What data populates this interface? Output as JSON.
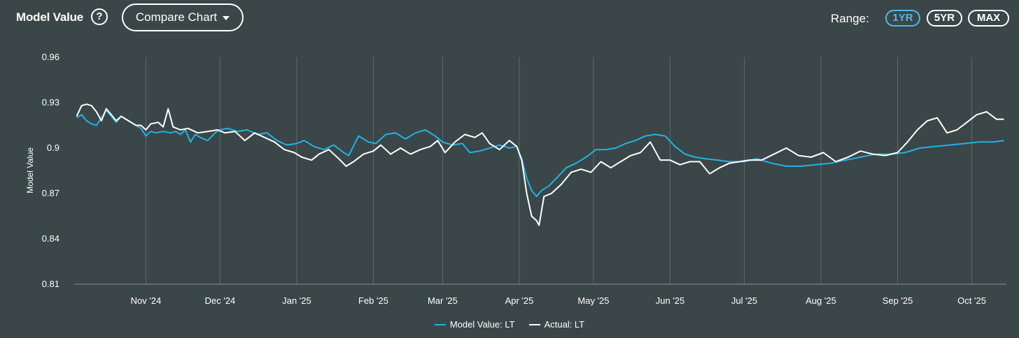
{
  "header": {
    "title": "Model Value",
    "help_icon": "question-icon",
    "compare_label": "Compare Chart",
    "range_label": "Range:",
    "range_options": [
      "1YR",
      "5YR",
      "MAX"
    ],
    "active_range": "1YR"
  },
  "colors": {
    "background": "#3b4648",
    "model": "#1fb4e6",
    "actual": "#ffffff",
    "active_pill": "#4db8ea",
    "grid": "#5d6a6c",
    "axis": "#8a9496"
  },
  "chart_data": {
    "type": "line",
    "xlabel": "",
    "ylabel": "Model Value",
    "ylim": [
      0.81,
      0.96
    ],
    "yticks": [
      "0.96",
      "0.93",
      "0.9",
      "0.87",
      "0.84",
      "0.81"
    ],
    "xlim": [
      "2024-10-03",
      "2025-10-15"
    ],
    "xticks": [
      {
        "label": "Nov '24",
        "date": "2024-11-01"
      },
      {
        "label": "Dec '24",
        "date": "2024-12-01"
      },
      {
        "label": "Jan '25",
        "date": "2025-01-01"
      },
      {
        "label": "Feb '25",
        "date": "2025-02-01"
      },
      {
        "label": "Mar '25",
        "date": "2025-03-01"
      },
      {
        "label": "Apr '25",
        "date": "2025-04-01"
      },
      {
        "label": "May '25",
        "date": "2025-05-01"
      },
      {
        "label": "Jun '25",
        "date": "2025-06-01"
      },
      {
        "label": "Jul '25",
        "date": "2025-07-01"
      },
      {
        "label": "Aug '25",
        "date": "2025-08-01"
      },
      {
        "label": "Sep '25",
        "date": "2025-09-01"
      },
      {
        "label": "Oct '25",
        "date": "2025-10-01"
      }
    ],
    "grid": "vertical",
    "legend_position": "bottom-center",
    "series": [
      {
        "name": "Model Value: LT",
        "color": "#1fb4e6",
        "points": [
          [
            "2024-10-04",
            0.92
          ],
          [
            "2024-10-06",
            0.922
          ],
          [
            "2024-10-08",
            0.918
          ],
          [
            "2024-10-10",
            0.916
          ],
          [
            "2024-10-12",
            0.915
          ],
          [
            "2024-10-14",
            0.92
          ],
          [
            "2024-10-16",
            0.925
          ],
          [
            "2024-10-18",
            0.921
          ],
          [
            "2024-10-20",
            0.917
          ],
          [
            "2024-10-22",
            0.921
          ],
          [
            "2024-10-25",
            0.918
          ],
          [
            "2024-10-28",
            0.915
          ],
          [
            "2024-10-30",
            0.913
          ],
          [
            "2024-11-01",
            0.908
          ],
          [
            "2024-11-03",
            0.911
          ],
          [
            "2024-11-05",
            0.91
          ],
          [
            "2024-11-08",
            0.911
          ],
          [
            "2024-11-11",
            0.91
          ],
          [
            "2024-11-13",
            0.911
          ],
          [
            "2024-11-15",
            0.909
          ],
          [
            "2024-11-17",
            0.912
          ],
          [
            "2024-11-19",
            0.904
          ],
          [
            "2024-11-21",
            0.909
          ],
          [
            "2024-11-23",
            0.907
          ],
          [
            "2024-11-26",
            0.905
          ],
          [
            "2024-11-29",
            0.91
          ],
          [
            "2024-12-01",
            0.912
          ],
          [
            "2024-12-04",
            0.913
          ],
          [
            "2024-12-08",
            0.911
          ],
          [
            "2024-12-12",
            0.912
          ],
          [
            "2024-12-16",
            0.909
          ],
          [
            "2024-12-20",
            0.91
          ],
          [
            "2024-12-24",
            0.905
          ],
          [
            "2024-12-28",
            0.902
          ],
          [
            "2025-01-01",
            0.903
          ],
          [
            "2025-01-04",
            0.905
          ],
          [
            "2025-01-08",
            0.901
          ],
          [
            "2025-01-12",
            0.899
          ],
          [
            "2025-01-16",
            0.902
          ],
          [
            "2025-01-20",
            0.897
          ],
          [
            "2025-01-22",
            0.895
          ],
          [
            "2025-01-26",
            0.908
          ],
          [
            "2025-01-30",
            0.904
          ],
          [
            "2025-02-02",
            0.903
          ],
          [
            "2025-02-06",
            0.909
          ],
          [
            "2025-02-10",
            0.91
          ],
          [
            "2025-02-14",
            0.906
          ],
          [
            "2025-02-18",
            0.91
          ],
          [
            "2025-02-22",
            0.912
          ],
          [
            "2025-02-26",
            0.908
          ],
          [
            "2025-03-01",
            0.904
          ],
          [
            "2025-03-05",
            0.902
          ],
          [
            "2025-03-09",
            0.903
          ],
          [
            "2025-03-12",
            0.897
          ],
          [
            "2025-03-16",
            0.898
          ],
          [
            "2025-03-20",
            0.9
          ],
          [
            "2025-03-24",
            0.902
          ],
          [
            "2025-03-28",
            0.9
          ],
          [
            "2025-03-31",
            0.901
          ],
          [
            "2025-04-02",
            0.893
          ],
          [
            "2025-04-04",
            0.88
          ],
          [
            "2025-04-06",
            0.872
          ],
          [
            "2025-04-08",
            0.868
          ],
          [
            "2025-04-10",
            0.872
          ],
          [
            "2025-04-13",
            0.875
          ],
          [
            "2025-04-16",
            0.88
          ],
          [
            "2025-04-20",
            0.887
          ],
          [
            "2025-04-24",
            0.89
          ],
          [
            "2025-04-28",
            0.894
          ],
          [
            "2025-05-02",
            0.899
          ],
          [
            "2025-05-06",
            0.899
          ],
          [
            "2025-05-10",
            0.9
          ],
          [
            "2025-05-14",
            0.903
          ],
          [
            "2025-05-18",
            0.905
          ],
          [
            "2025-05-22",
            0.908
          ],
          [
            "2025-05-26",
            0.909
          ],
          [
            "2025-05-30",
            0.908
          ],
          [
            "2025-06-03",
            0.901
          ],
          [
            "2025-06-07",
            0.896
          ],
          [
            "2025-06-11",
            0.894
          ],
          [
            "2025-06-15",
            0.893
          ],
          [
            "2025-06-20",
            0.892
          ],
          [
            "2025-06-25",
            0.891
          ],
          [
            "2025-07-01",
            0.891
          ],
          [
            "2025-07-06",
            0.893
          ],
          [
            "2025-07-12",
            0.89
          ],
          [
            "2025-07-18",
            0.888
          ],
          [
            "2025-07-24",
            0.888
          ],
          [
            "2025-07-30",
            0.889
          ],
          [
            "2025-08-05",
            0.89
          ],
          [
            "2025-08-11",
            0.892
          ],
          [
            "2025-08-17",
            0.894
          ],
          [
            "2025-08-23",
            0.896
          ],
          [
            "2025-08-29",
            0.896
          ],
          [
            "2025-09-04",
            0.897
          ],
          [
            "2025-09-10",
            0.9
          ],
          [
            "2025-09-16",
            0.901
          ],
          [
            "2025-09-22",
            0.902
          ],
          [
            "2025-09-28",
            0.903
          ],
          [
            "2025-10-04",
            0.904
          ],
          [
            "2025-10-10",
            0.904
          ],
          [
            "2025-10-14",
            0.905
          ]
        ]
      },
      {
        "name": "Actual: LT",
        "color": "#ffffff",
        "points": [
          [
            "2024-10-04",
            0.921
          ],
          [
            "2024-10-06",
            0.928
          ],
          [
            "2024-10-08",
            0.929
          ],
          [
            "2024-10-10",
            0.928
          ],
          [
            "2024-10-12",
            0.924
          ],
          [
            "2024-10-14",
            0.918
          ],
          [
            "2024-10-16",
            0.926
          ],
          [
            "2024-10-18",
            0.922
          ],
          [
            "2024-10-20",
            0.918
          ],
          [
            "2024-10-22",
            0.921
          ],
          [
            "2024-10-25",
            0.918
          ],
          [
            "2024-10-28",
            0.915
          ],
          [
            "2024-10-30",
            0.915
          ],
          [
            "2024-11-01",
            0.912
          ],
          [
            "2024-11-03",
            0.916
          ],
          [
            "2024-11-06",
            0.917
          ],
          [
            "2024-11-08",
            0.914
          ],
          [
            "2024-11-10",
            0.926
          ],
          [
            "2024-11-12",
            0.914
          ],
          [
            "2024-11-15",
            0.912
          ],
          [
            "2024-11-18",
            0.913
          ],
          [
            "2024-11-22",
            0.91
          ],
          [
            "2024-11-26",
            0.911
          ],
          [
            "2024-11-30",
            0.912
          ],
          [
            "2024-12-03",
            0.91
          ],
          [
            "2024-12-07",
            0.911
          ],
          [
            "2024-12-11",
            0.905
          ],
          [
            "2024-12-15",
            0.91
          ],
          [
            "2024-12-19",
            0.907
          ],
          [
            "2024-12-23",
            0.904
          ],
          [
            "2024-12-27",
            0.899
          ],
          [
            "2024-12-31",
            0.897
          ],
          [
            "2025-01-03",
            0.894
          ],
          [
            "2025-01-07",
            0.892
          ],
          [
            "2025-01-10",
            0.896
          ],
          [
            "2025-01-14",
            0.899
          ],
          [
            "2025-01-18",
            0.893
          ],
          [
            "2025-01-21",
            0.888
          ],
          [
            "2025-01-24",
            0.891
          ],
          [
            "2025-01-28",
            0.896
          ],
          [
            "2025-02-01",
            0.898
          ],
          [
            "2025-02-04",
            0.902
          ],
          [
            "2025-02-08",
            0.896
          ],
          [
            "2025-02-12",
            0.9
          ],
          [
            "2025-02-16",
            0.896
          ],
          [
            "2025-02-20",
            0.899
          ],
          [
            "2025-02-24",
            0.901
          ],
          [
            "2025-02-27",
            0.905
          ],
          [
            "2025-03-02",
            0.897
          ],
          [
            "2025-03-06",
            0.904
          ],
          [
            "2025-03-10",
            0.909
          ],
          [
            "2025-03-14",
            0.907
          ],
          [
            "2025-03-17",
            0.91
          ],
          [
            "2025-03-20",
            0.903
          ],
          [
            "2025-03-24",
            0.899
          ],
          [
            "2025-03-28",
            0.905
          ],
          [
            "2025-03-31",
            0.901
          ],
          [
            "2025-04-02",
            0.892
          ],
          [
            "2025-04-04",
            0.87
          ],
          [
            "2025-04-06",
            0.855
          ],
          [
            "2025-04-08",
            0.852
          ],
          [
            "2025-04-09",
            0.849
          ],
          [
            "2025-04-11",
            0.868
          ],
          [
            "2025-04-14",
            0.87
          ],
          [
            "2025-04-18",
            0.876
          ],
          [
            "2025-04-22",
            0.884
          ],
          [
            "2025-04-26",
            0.886
          ],
          [
            "2025-04-30",
            0.884
          ],
          [
            "2025-05-04",
            0.891
          ],
          [
            "2025-05-08",
            0.887
          ],
          [
            "2025-05-12",
            0.891
          ],
          [
            "2025-05-16",
            0.895
          ],
          [
            "2025-05-20",
            0.897
          ],
          [
            "2025-05-24",
            0.904
          ],
          [
            "2025-05-28",
            0.892
          ],
          [
            "2025-06-01",
            0.892
          ],
          [
            "2025-06-05",
            0.889
          ],
          [
            "2025-06-09",
            0.891
          ],
          [
            "2025-06-13",
            0.891
          ],
          [
            "2025-06-17",
            0.883
          ],
          [
            "2025-06-21",
            0.887
          ],
          [
            "2025-06-25",
            0.89
          ],
          [
            "2025-06-29",
            0.891
          ],
          [
            "2025-07-03",
            0.892
          ],
          [
            "2025-07-08",
            0.892
          ],
          [
            "2025-07-13",
            0.896
          ],
          [
            "2025-07-18",
            0.9
          ],
          [
            "2025-07-23",
            0.895
          ],
          [
            "2025-07-28",
            0.894
          ],
          [
            "2025-08-02",
            0.897
          ],
          [
            "2025-08-07",
            0.891
          ],
          [
            "2025-08-12",
            0.894
          ],
          [
            "2025-08-17",
            0.898
          ],
          [
            "2025-08-22",
            0.896
          ],
          [
            "2025-08-27",
            0.895
          ],
          [
            "2025-09-01",
            0.897
          ],
          [
            "2025-09-05",
            0.904
          ],
          [
            "2025-09-09",
            0.912
          ],
          [
            "2025-09-13",
            0.918
          ],
          [
            "2025-09-17",
            0.92
          ],
          [
            "2025-09-21",
            0.91
          ],
          [
            "2025-09-25",
            0.912
          ],
          [
            "2025-09-29",
            0.917
          ],
          [
            "2025-10-03",
            0.922
          ],
          [
            "2025-10-07",
            0.924
          ],
          [
            "2025-10-11",
            0.919
          ],
          [
            "2025-10-14",
            0.919
          ]
        ]
      }
    ]
  }
}
